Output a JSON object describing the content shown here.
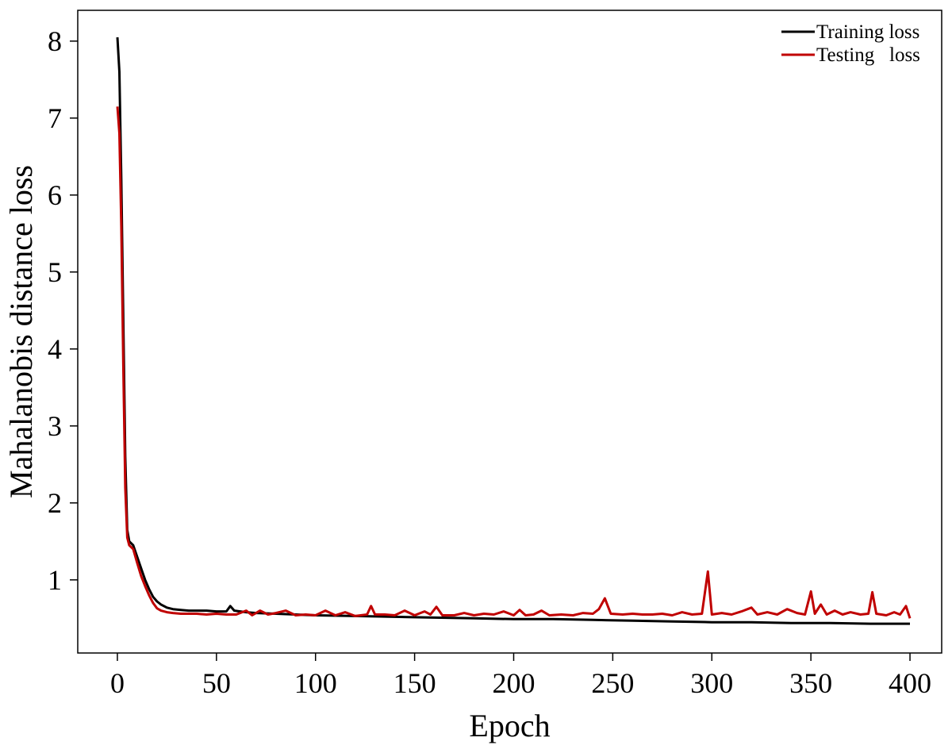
{
  "chart_data": {
    "type": "line",
    "xlabel": "Epoch",
    "ylabel": "Mahalanobis distance loss",
    "xlim": [
      -20,
      416
    ],
    "ylim": [
      0.05,
      8.4
    ],
    "xticks": [
      0,
      50,
      100,
      150,
      200,
      250,
      300,
      350,
      400
    ],
    "yticks": [
      1,
      2,
      3,
      4,
      5,
      6,
      7,
      8
    ],
    "grid": false,
    "legend_position": "top-right",
    "series": [
      {
        "name": "Training loss",
        "color": "#000000",
        "points": [
          [
            0,
            8.05
          ],
          [
            1,
            7.6
          ],
          [
            2,
            6.2
          ],
          [
            3,
            4.4
          ],
          [
            4,
            2.6
          ],
          [
            5,
            1.65
          ],
          [
            6,
            1.5
          ],
          [
            8,
            1.45
          ],
          [
            10,
            1.3
          ],
          [
            12,
            1.15
          ],
          [
            14,
            1.0
          ],
          [
            16,
            0.88
          ],
          [
            18,
            0.78
          ],
          [
            20,
            0.72
          ],
          [
            22,
            0.68
          ],
          [
            25,
            0.64
          ],
          [
            28,
            0.62
          ],
          [
            32,
            0.61
          ],
          [
            36,
            0.6
          ],
          [
            40,
            0.6
          ],
          [
            45,
            0.6
          ],
          [
            50,
            0.59
          ],
          [
            55,
            0.59
          ],
          [
            57,
            0.66
          ],
          [
            59,
            0.6
          ],
          [
            65,
            0.58
          ],
          [
            70,
            0.57
          ],
          [
            80,
            0.56
          ],
          [
            90,
            0.55
          ],
          [
            100,
            0.54
          ],
          [
            120,
            0.53
          ],
          [
            140,
            0.52
          ],
          [
            160,
            0.51
          ],
          [
            180,
            0.5
          ],
          [
            200,
            0.49
          ],
          [
            220,
            0.49
          ],
          [
            240,
            0.48
          ],
          [
            260,
            0.47
          ],
          [
            280,
            0.46
          ],
          [
            300,
            0.45
          ],
          [
            320,
            0.45
          ],
          [
            340,
            0.44
          ],
          [
            360,
            0.44
          ],
          [
            380,
            0.43
          ],
          [
            400,
            0.43
          ]
        ]
      },
      {
        "name": "Testing   loss",
        "color": "#c00000",
        "points": [
          [
            0,
            7.15
          ],
          [
            1,
            6.8
          ],
          [
            2,
            5.6
          ],
          [
            3,
            3.8
          ],
          [
            4,
            2.2
          ],
          [
            5,
            1.55
          ],
          [
            6,
            1.45
          ],
          [
            8,
            1.4
          ],
          [
            10,
            1.22
          ],
          [
            12,
            1.05
          ],
          [
            14,
            0.92
          ],
          [
            16,
            0.8
          ],
          [
            18,
            0.7
          ],
          [
            20,
            0.63
          ],
          [
            22,
            0.6
          ],
          [
            25,
            0.58
          ],
          [
            28,
            0.57
          ],
          [
            32,
            0.56
          ],
          [
            36,
            0.56
          ],
          [
            40,
            0.56
          ],
          [
            45,
            0.55
          ],
          [
            50,
            0.56
          ],
          [
            55,
            0.55
          ],
          [
            60,
            0.55
          ],
          [
            65,
            0.6
          ],
          [
            68,
            0.54
          ],
          [
            72,
            0.6
          ],
          [
            76,
            0.55
          ],
          [
            80,
            0.57
          ],
          [
            85,
            0.6
          ],
          [
            90,
            0.54
          ],
          [
            95,
            0.55
          ],
          [
            100,
            0.54
          ],
          [
            105,
            0.6
          ],
          [
            110,
            0.54
          ],
          [
            115,
            0.58
          ],
          [
            120,
            0.53
          ],
          [
            126,
            0.55
          ],
          [
            128,
            0.66
          ],
          [
            130,
            0.55
          ],
          [
            135,
            0.55
          ],
          [
            140,
            0.54
          ],
          [
            145,
            0.6
          ],
          [
            150,
            0.54
          ],
          [
            155,
            0.59
          ],
          [
            158,
            0.55
          ],
          [
            161,
            0.65
          ],
          [
            164,
            0.54
          ],
          [
            170,
            0.54
          ],
          [
            175,
            0.57
          ],
          [
            180,
            0.54
          ],
          [
            185,
            0.56
          ],
          [
            190,
            0.55
          ],
          [
            195,
            0.59
          ],
          [
            200,
            0.54
          ],
          [
            203,
            0.61
          ],
          [
            206,
            0.54
          ],
          [
            210,
            0.55
          ],
          [
            214,
            0.6
          ],
          [
            218,
            0.54
          ],
          [
            224,
            0.55
          ],
          [
            230,
            0.54
          ],
          [
            235,
            0.57
          ],
          [
            240,
            0.56
          ],
          [
            243,
            0.62
          ],
          [
            246,
            0.76
          ],
          [
            249,
            0.56
          ],
          [
            255,
            0.55
          ],
          [
            260,
            0.56
          ],
          [
            265,
            0.55
          ],
          [
            270,
            0.55
          ],
          [
            275,
            0.56
          ],
          [
            280,
            0.54
          ],
          [
            285,
            0.58
          ],
          [
            290,
            0.55
          ],
          [
            295,
            0.56
          ],
          [
            298,
            1.11
          ],
          [
            300,
            0.55
          ],
          [
            305,
            0.57
          ],
          [
            310,
            0.55
          ],
          [
            315,
            0.59
          ],
          [
            320,
            0.64
          ],
          [
            323,
            0.55
          ],
          [
            328,
            0.58
          ],
          [
            333,
            0.55
          ],
          [
            338,
            0.62
          ],
          [
            343,
            0.57
          ],
          [
            347,
            0.55
          ],
          [
            350,
            0.85
          ],
          [
            352,
            0.56
          ],
          [
            355,
            0.68
          ],
          [
            358,
            0.55
          ],
          [
            362,
            0.6
          ],
          [
            366,
            0.55
          ],
          [
            370,
            0.58
          ],
          [
            375,
            0.55
          ],
          [
            379,
            0.56
          ],
          [
            381,
            0.84
          ],
          [
            383,
            0.56
          ],
          [
            388,
            0.54
          ],
          [
            392,
            0.58
          ],
          [
            395,
            0.55
          ],
          [
            398,
            0.66
          ],
          [
            400,
            0.5
          ]
        ]
      }
    ]
  }
}
